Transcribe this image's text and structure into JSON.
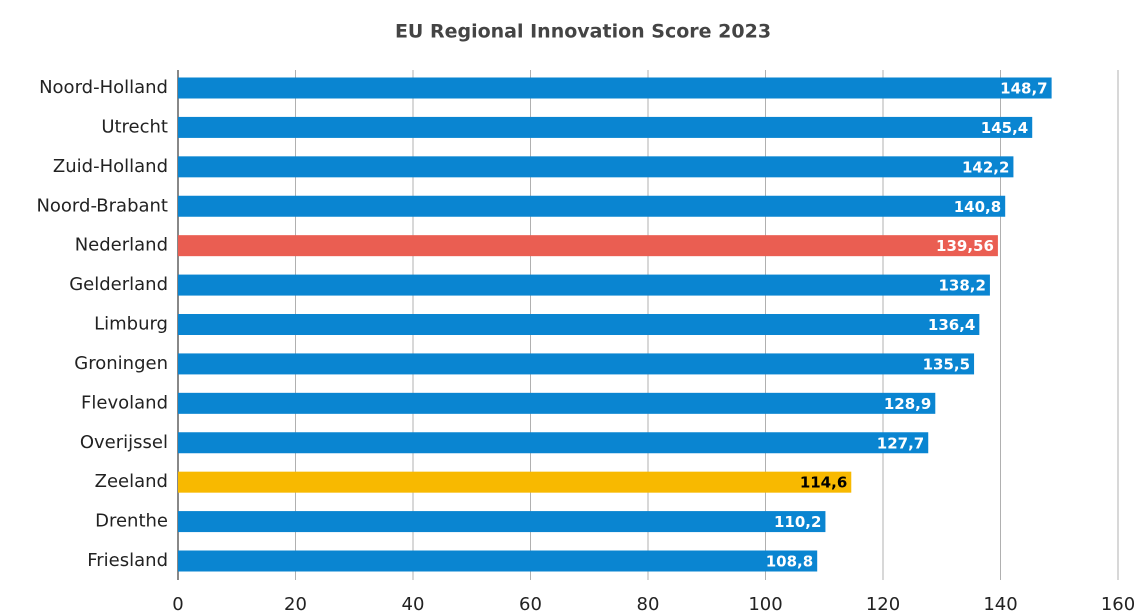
{
  "chart_data": {
    "type": "hbar",
    "title": "EU Regional Innovation Score 2023",
    "categories": [
      "Noord-Holland",
      "Utrecht",
      "Zuid-Holland",
      "Noord-Brabant",
      "Nederland",
      "Gelderland",
      "Limburg",
      "Groningen",
      "Flevoland",
      "Overijssel",
      "Zeeland",
      "Drenthe",
      "Friesland"
    ],
    "values": [
      148.7,
      145.4,
      142.2,
      140.8,
      139.56,
      138.2,
      136.4,
      135.5,
      128.9,
      127.7,
      114.6,
      110.2,
      108.8
    ],
    "value_labels": [
      "148,7",
      "145,4",
      "142,2",
      "140,8",
      "139,56",
      "138,2",
      "136,4",
      "135,5",
      "128,9",
      "127,7",
      "114,6",
      "110,2",
      "108,8"
    ],
    "colors": [
      "#0a85d1",
      "#0a85d1",
      "#0a85d1",
      "#0a85d1",
      "#ea5e52",
      "#0a85d1",
      "#0a85d1",
      "#0a85d1",
      "#0a85d1",
      "#0a85d1",
      "#f8b900",
      "#0a85d1",
      "#0a85d1"
    ],
    "value_label_colors": [
      "#ffffff",
      "#ffffff",
      "#ffffff",
      "#ffffff",
      "#ffffff",
      "#ffffff",
      "#ffffff",
      "#ffffff",
      "#ffffff",
      "#ffffff",
      "#000000",
      "#ffffff",
      "#ffffff"
    ],
    "xlim": [
      0,
      160
    ],
    "xticks": [
      0,
      20,
      40,
      60,
      80,
      100,
      120,
      140,
      160
    ],
    "grid": true
  }
}
